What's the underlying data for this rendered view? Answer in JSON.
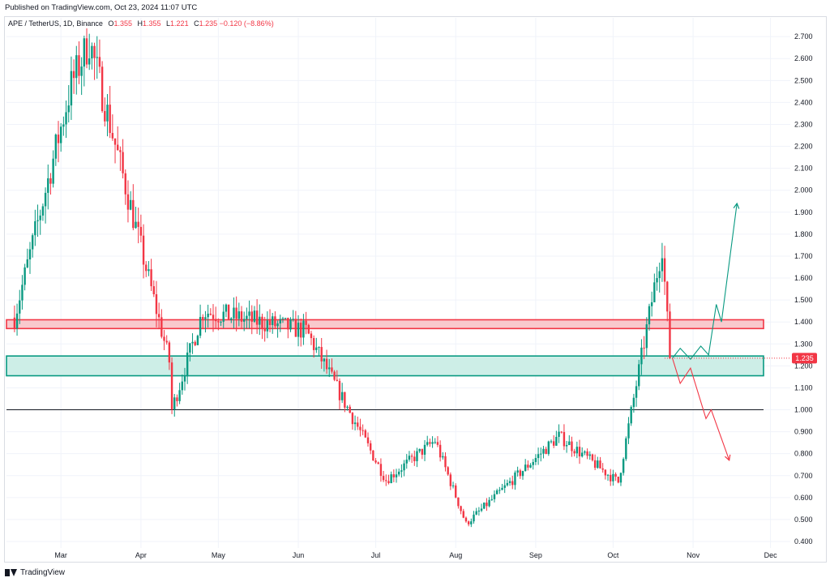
{
  "published_text": "Published on TradingView.com, Oct 23, 2024 11:07 UTC",
  "footer": {
    "brand": "TradingView"
  },
  "legend": {
    "symbol": "APE / TetherUS, 1D, Binance",
    "o_label": "O",
    "o_value": "1.355",
    "h_label": "H",
    "h_value": "1.355",
    "l_label": "L",
    "l_value": "1.221",
    "c_label": "C",
    "c_value": "1.235",
    "change": "−0.120 (−8.86%)"
  },
  "colors": {
    "up": "#089981",
    "down": "#f23645",
    "resistance_fill": "#f9c9cd",
    "support_fill": "#cdeee7",
    "axis_text": "#131722"
  },
  "chart_data": {
    "type": "candlestick",
    "title": "",
    "ylim": [
      0.36,
      2.75
    ],
    "y_ticks": [
      "2.700",
      "2.600",
      "2.500",
      "2.400",
      "2.300",
      "2.200",
      "2.100",
      "2.000",
      "1.900",
      "1.800",
      "1.700",
      "1.600",
      "1.500",
      "1.400",
      "1.300",
      "1.200",
      "1.100",
      "1.000",
      "0.900",
      "0.800",
      "0.700",
      "0.600",
      "0.500",
      "0.400"
    ],
    "x_ticks": [
      "Mar",
      "Apr",
      "May",
      "Jun",
      "Jul",
      "Aug",
      "Sep",
      "Oct",
      "Nov",
      "Dec"
    ],
    "last_price": 1.235,
    "last_price_label": "1.235",
    "key_points": [
      {
        "date": "2024-02-12",
        "price": 1.42
      },
      {
        "date": "2024-03-05",
        "price": 2.48
      },
      {
        "date": "2024-03-12",
        "price": 2.68
      },
      {
        "date": "2024-04-12",
        "price": 1.22
      },
      {
        "date": "2024-04-13",
        "price": 1.0
      },
      {
        "date": "2024-04-25",
        "price": 1.45
      },
      {
        "date": "2024-06-04",
        "price": 1.36
      },
      {
        "date": "2024-06-25",
        "price": 0.9
      },
      {
        "date": "2024-07-05",
        "price": 0.68
      },
      {
        "date": "2024-07-24",
        "price": 0.86
      },
      {
        "date": "2024-08-05",
        "price": 0.48
      },
      {
        "date": "2024-09-10",
        "price": 0.88
      },
      {
        "date": "2024-10-03",
        "price": 0.67
      },
      {
        "date": "2024-10-20",
        "price": 1.75
      },
      {
        "date": "2024-10-23",
        "price": 1.235
      }
    ],
    "zones": [
      {
        "name": "resistance",
        "low": 1.37,
        "high": 1.41
      },
      {
        "name": "support",
        "low": 1.155,
        "high": 1.245
      }
    ],
    "horizontal_lines": [
      1.0
    ],
    "projection_up": [
      {
        "date": "2024-10-24",
        "price": 1.235
      },
      {
        "date": "2024-10-27",
        "price": 1.28
      },
      {
        "date": "2024-10-31",
        "price": 1.23
      },
      {
        "date": "2024-11-04",
        "price": 1.29
      },
      {
        "date": "2024-11-07",
        "price": 1.25
      },
      {
        "date": "2024-11-10",
        "price": 1.48
      },
      {
        "date": "2024-11-12",
        "price": 1.4
      },
      {
        "date": "2024-11-18",
        "price": 1.94
      }
    ],
    "projection_down": [
      {
        "date": "2024-10-24",
        "price": 1.235
      },
      {
        "date": "2024-10-27",
        "price": 1.12
      },
      {
        "date": "2024-10-31",
        "price": 1.19
      },
      {
        "date": "2024-11-06",
        "price": 0.96
      },
      {
        "date": "2024-11-08",
        "price": 1.0
      },
      {
        "date": "2024-11-15",
        "price": 0.77
      }
    ]
  }
}
